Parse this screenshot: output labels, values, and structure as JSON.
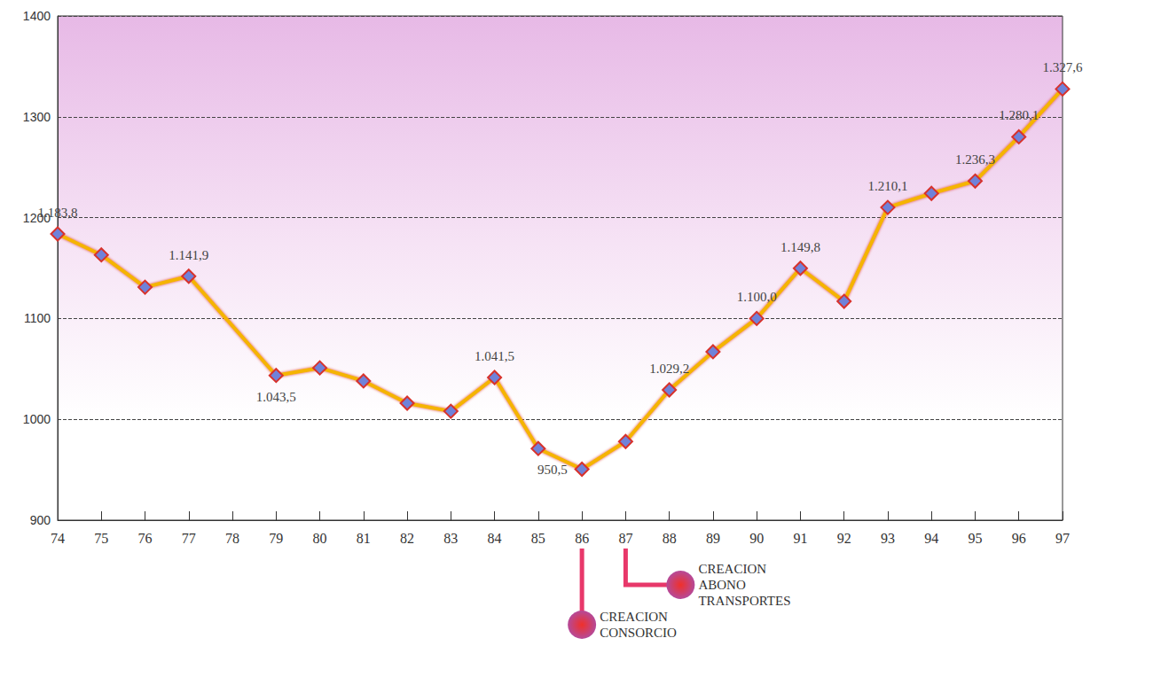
{
  "chart_data": {
    "type": "line",
    "categories": [
      "74",
      "75",
      "76",
      "77",
      "78",
      "79",
      "80",
      "81",
      "82",
      "83",
      "84",
      "85",
      "86",
      "87",
      "88",
      "89",
      "90",
      "91",
      "92",
      "93",
      "94",
      "95",
      "96",
      "97"
    ],
    "values": [
      1183.8,
      1163,
      1131,
      1141.9,
      null,
      1043.5,
      1051,
      1038,
      1016,
      1008,
      1041.5,
      971,
      950.5,
      978,
      1029.2,
      1067,
      1100.0,
      1149.8,
      1117,
      1210.1,
      1224,
      1236.3,
      1280.1,
      1327.6
    ],
    "value_labels": [
      "1.183,8",
      null,
      null,
      "1.141,9",
      null,
      "1.043,5",
      null,
      null,
      null,
      null,
      "1.041,5",
      null,
      "950,5",
      null,
      "1.029,2",
      null,
      "1.100,0",
      "1.149,8",
      null,
      "1.210,1",
      null,
      "1.236,3",
      "1.280,1",
      "1.327,6"
    ],
    "color": "#f5b400",
    "marker": "diamond",
    "ylim": [
      900,
      1400
    ],
    "yticks": [
      900,
      1000,
      1100,
      1200,
      1300,
      1400
    ],
    "grid": true,
    "data_labels": true,
    "annotations": [
      {
        "x": "86",
        "text": "CREACION CONSORCIO"
      },
      {
        "x": "87",
        "text": "CREACION ABONO TRANSPORTES"
      }
    ]
  }
}
